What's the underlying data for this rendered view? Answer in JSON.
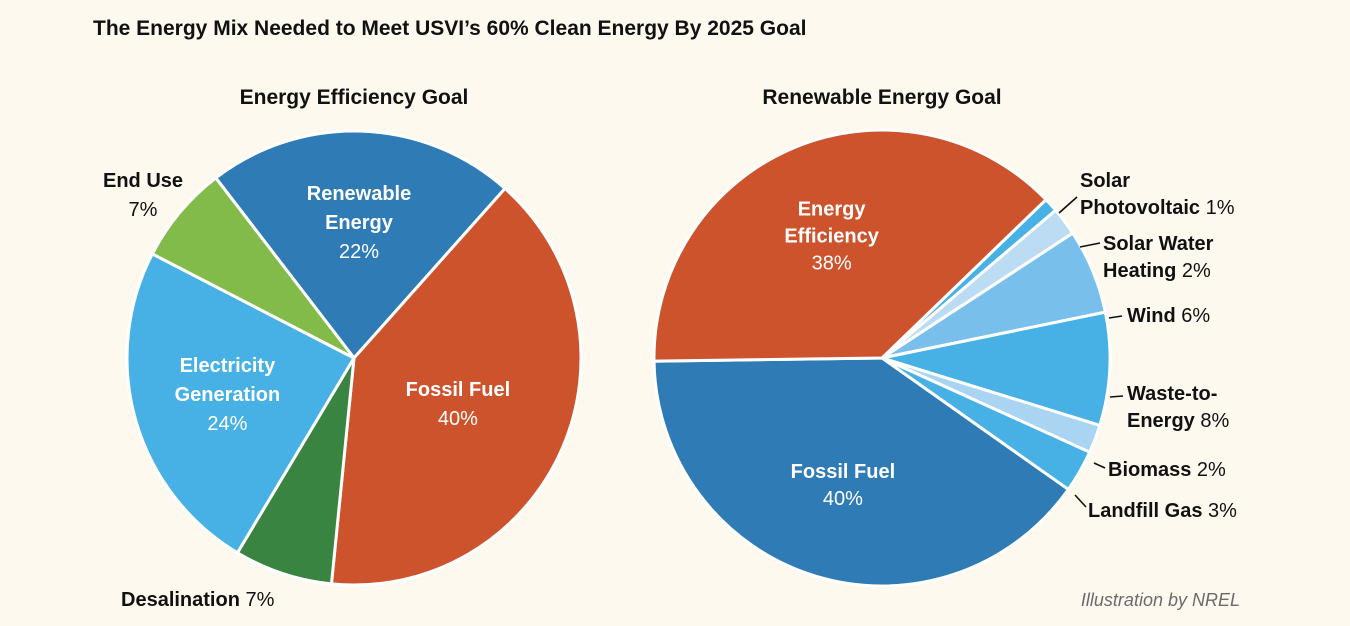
{
  "title": "The Energy Mix Needed to Meet USVI’s 60% Clean Energy By 2025 Goal",
  "credit": "Illustration by NREL",
  "chart_data": [
    {
      "type": "pie",
      "title": "Energy Efficiency Goal",
      "slices": [
        {
          "label": "Renewable Energy",
          "name_lines": [
            "Renewable",
            "Energy"
          ],
          "value": 22,
          "pct": "22%",
          "color": "#2f7bb6"
        },
        {
          "label": "Fossil Fuel",
          "name_lines": [
            "Fossil Fuel"
          ],
          "value": 40,
          "pct": "40%",
          "color": "#cd532c"
        },
        {
          "label": "Desalination",
          "name_lines": [
            "Desalination"
          ],
          "value": 7,
          "pct": "7%",
          "color": "#3a8442"
        },
        {
          "label": "Electricity Generation",
          "name_lines": [
            "Electricity",
            "Generation"
          ],
          "value": 24,
          "pct": "24%",
          "color": "#47b0e4"
        },
        {
          "label": "End Use",
          "name_lines": [
            "End Use"
          ],
          "value": 7,
          "pct": "7%",
          "color": "#83bb4b"
        }
      ]
    },
    {
      "type": "pie",
      "title": "Renewable Energy Goal",
      "slices": [
        {
          "label": "Solar Photovoltaic",
          "name_lines": [
            "Solar",
            "Photovoltaic"
          ],
          "value": 1,
          "pct": "1%",
          "color": "#47b0e4"
        },
        {
          "label": "Solar Water Heating",
          "name_lines": [
            "Solar Water",
            "Heating"
          ],
          "value": 2,
          "pct": "2%",
          "color": "#bcdcf4"
        },
        {
          "label": "Wind",
          "name_lines": [
            "Wind"
          ],
          "value": 6,
          "pct": "6%",
          "color": "#78bfec"
        },
        {
          "label": "Waste-to-Energy",
          "name_lines": [
            "Waste-to-",
            "Energy"
          ],
          "value": 8,
          "pct": "8%",
          "color": "#47b0e4"
        },
        {
          "label": "Biomass",
          "name_lines": [
            "Biomass"
          ],
          "value": 2,
          "pct": "2%",
          "color": "#a9d4f2"
        },
        {
          "label": "Landfill Gas",
          "name_lines": [
            "Landfill Gas"
          ],
          "value": 3,
          "pct": "3%",
          "color": "#47b0e4"
        },
        {
          "label": "Fossil Fuel",
          "name_lines": [
            "Fossil Fuel"
          ],
          "value": 40,
          "pct": "40%",
          "color": "#2f7bb6"
        },
        {
          "label": "Energy Efficiency",
          "name_lines": [
            "Energy",
            "Efficiency"
          ],
          "value": 38,
          "pct": "38%",
          "color": "#cd532c"
        }
      ]
    }
  ]
}
